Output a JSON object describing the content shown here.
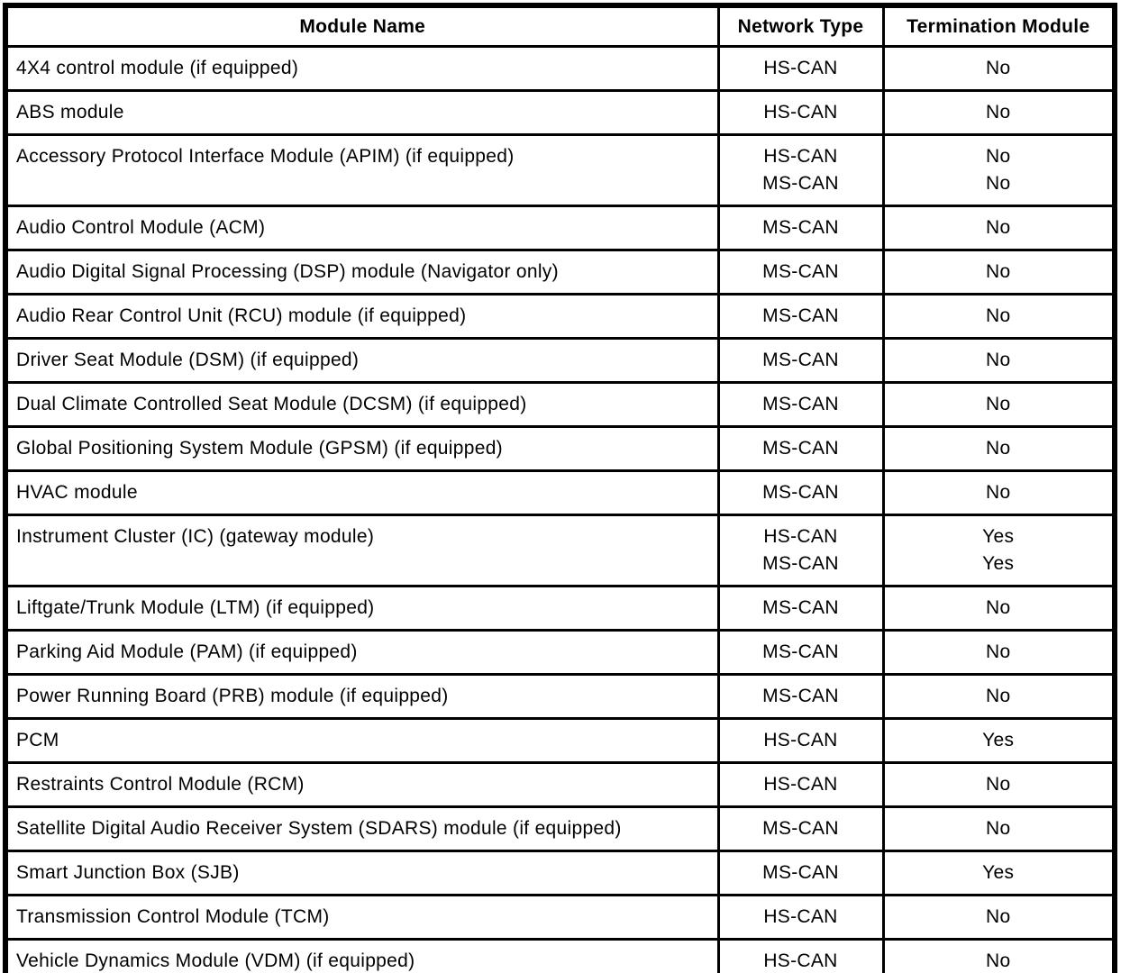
{
  "page": {
    "background": "#ffffff",
    "text_color": "#000000",
    "border_color": "#000000"
  },
  "table": {
    "headers": [
      "Module Name",
      "Network Type",
      "Termination Module"
    ],
    "rows": [
      {
        "module": "4X4 control module (if equipped)",
        "network": [
          "HS-CAN"
        ],
        "termination": [
          "No"
        ]
      },
      {
        "module": "ABS module",
        "network": [
          "HS-CAN"
        ],
        "termination": [
          "No"
        ]
      },
      {
        "module": "Accessory Protocol Interface Module (APIM) (if equipped)",
        "network": [
          "HS-CAN",
          "MS-CAN"
        ],
        "termination": [
          "No",
          "No"
        ]
      },
      {
        "module": "Audio Control Module (ACM)",
        "network": [
          "MS-CAN"
        ],
        "termination": [
          "No"
        ]
      },
      {
        "module": "Audio Digital Signal Processing (DSP) module (Navigator only)",
        "network": [
          "MS-CAN"
        ],
        "termination": [
          "No"
        ]
      },
      {
        "module": "Audio Rear Control Unit (RCU) module (if equipped)",
        "network": [
          "MS-CAN"
        ],
        "termination": [
          "No"
        ]
      },
      {
        "module": "Driver Seat Module (DSM) (if equipped)",
        "network": [
          "MS-CAN"
        ],
        "termination": [
          "No"
        ]
      },
      {
        "module": "Dual Climate Controlled Seat Module (DCSM) (if equipped)",
        "network": [
          "MS-CAN"
        ],
        "termination": [
          "No"
        ]
      },
      {
        "module": "Global Positioning System Module (GPSM) (if equipped)",
        "network": [
          "MS-CAN"
        ],
        "termination": [
          "No"
        ]
      },
      {
        "module": "HVAC module",
        "network": [
          "MS-CAN"
        ],
        "termination": [
          "No"
        ]
      },
      {
        "module": "Instrument Cluster (IC) (gateway module)",
        "network": [
          "HS-CAN",
          "MS-CAN"
        ],
        "termination": [
          "Yes",
          "Yes"
        ]
      },
      {
        "module": "Liftgate/Trunk Module (LTM) (if equipped)",
        "network": [
          "MS-CAN"
        ],
        "termination": [
          "No"
        ]
      },
      {
        "module": "Parking Aid Module (PAM) (if equipped)",
        "network": [
          "MS-CAN"
        ],
        "termination": [
          "No"
        ]
      },
      {
        "module": "Power Running Board (PRB) module (if equipped)",
        "network": [
          "MS-CAN"
        ],
        "termination": [
          "No"
        ]
      },
      {
        "module": "PCM",
        "network": [
          "HS-CAN"
        ],
        "termination": [
          "Yes"
        ]
      },
      {
        "module": "Restraints Control Module (RCM)",
        "network": [
          "HS-CAN"
        ],
        "termination": [
          "No"
        ]
      },
      {
        "module": "Satellite Digital Audio Receiver System (SDARS) module (if equipped)",
        "network": [
          "MS-CAN"
        ],
        "termination": [
          "No"
        ]
      },
      {
        "module": "Smart Junction Box (SJB)",
        "network": [
          "MS-CAN"
        ],
        "termination": [
          "Yes"
        ]
      },
      {
        "module": "Transmission Control Module (TCM)",
        "network": [
          "HS-CAN"
        ],
        "termination": [
          "No"
        ]
      },
      {
        "module": "Vehicle Dynamics Module (VDM) (if equipped)",
        "network": [
          "HS-CAN"
        ],
        "termination": [
          "No"
        ]
      }
    ]
  }
}
